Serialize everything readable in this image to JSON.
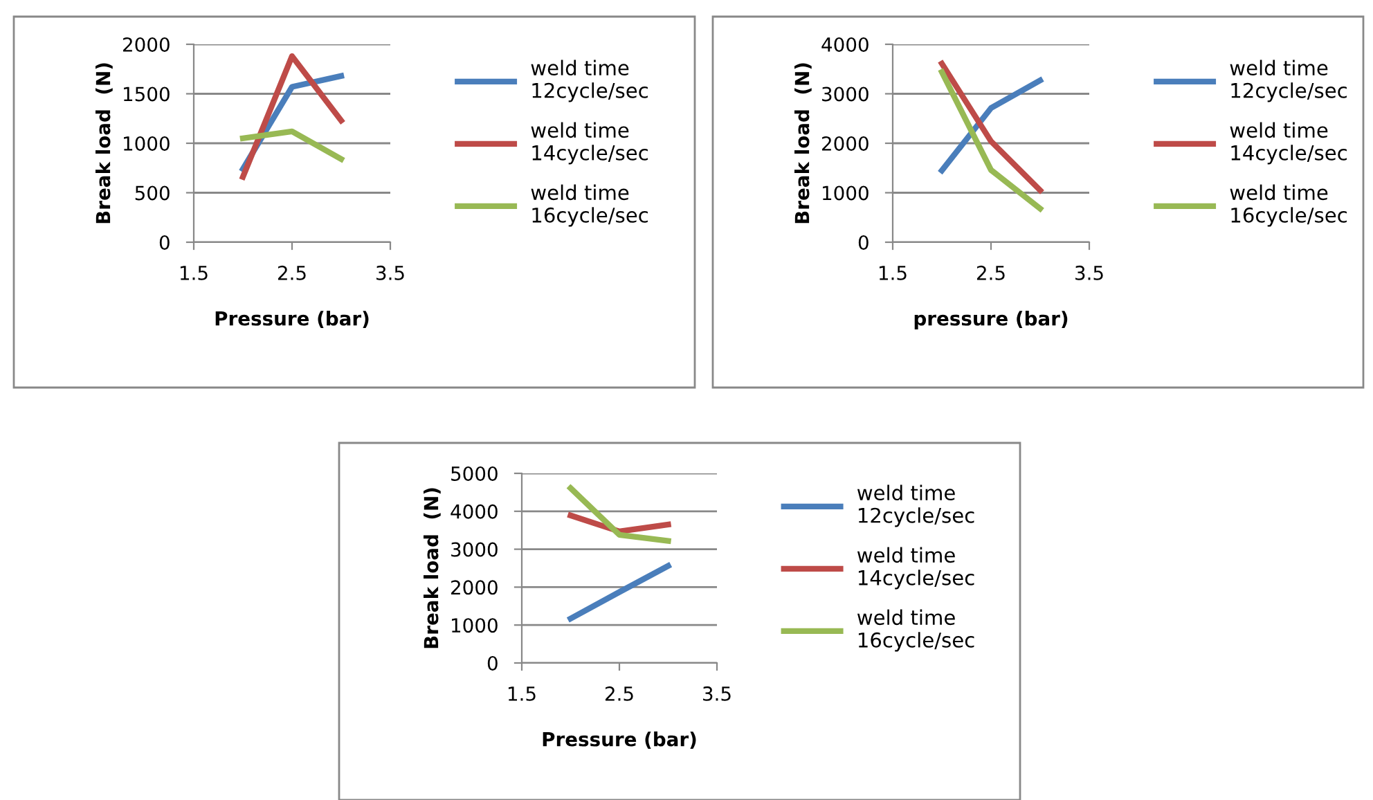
{
  "chart_data": [
    {
      "type": "line",
      "xlabel": "Pressure (bar)",
      "ylabel": "Break load  (N)",
      "xlim": [
        1.5,
        3.5
      ],
      "xticks": [
        1.5,
        2.5,
        3.5
      ],
      "ylim": [
        0,
        2000
      ],
      "yticks": [
        0,
        500,
        1000,
        1500,
        2000
      ],
      "grid": "y",
      "legend": "right",
      "x": [
        2,
        2.5,
        3
      ],
      "series": [
        {
          "name": "weld time\n12cycle/sec",
          "color": "#4a7ebb",
          "values": [
            740,
            1570,
            1680
          ]
        },
        {
          "name": "weld time\n14cycle/sec",
          "color": "#be4b48",
          "values": [
            660,
            1880,
            1230
          ]
        },
        {
          "name": "weld time\n16cycle/sec",
          "color": "#98b954",
          "values": [
            1050,
            1120,
            840
          ]
        }
      ]
    },
    {
      "type": "line",
      "xlabel": "pressure (bar)",
      "ylabel": "Break load  (N)",
      "xlim": [
        1.5,
        3.5
      ],
      "xticks": [
        1.5,
        2.5,
        3.5
      ],
      "ylim": [
        0,
        4000
      ],
      "yticks": [
        0,
        1000,
        2000,
        3000,
        4000
      ],
      "grid": "y",
      "legend": "right",
      "x": [
        2,
        2.5,
        3
      ],
      "series": [
        {
          "name": "weld time\n12cycle/sec",
          "color": "#4a7ebb",
          "values": [
            1450,
            2710,
            3270
          ]
        },
        {
          "name": "weld time\n14cycle/sec",
          "color": "#be4b48",
          "values": [
            3610,
            2040,
            1050
          ]
        },
        {
          "name": "weld time\n16cycle/sec",
          "color": "#98b954",
          "values": [
            3440,
            1460,
            680
          ]
        }
      ]
    },
    {
      "type": "line",
      "xlabel": "Pressure (bar)",
      "ylabel": "Break load  (N)",
      "xlim": [
        1.5,
        3.5
      ],
      "xticks": [
        1.5,
        2.5,
        3.5
      ],
      "ylim": [
        0,
        5000
      ],
      "yticks": [
        0,
        1000,
        2000,
        3000,
        4000,
        5000
      ],
      "grid": "y",
      "legend": "right",
      "x": [
        2,
        2.5,
        3
      ],
      "series": [
        {
          "name": "weld time\n12cycle/sec",
          "color": "#4a7ebb",
          "values": [
            1170,
            1870,
            2560
          ]
        },
        {
          "name": "weld time\n14cycle/sec",
          "color": "#be4b48",
          "values": [
            3890,
            3470,
            3650
          ]
        },
        {
          "name": "weld time\n16cycle/sec",
          "color": "#98b954",
          "values": [
            4610,
            3380,
            3220
          ]
        }
      ]
    }
  ]
}
